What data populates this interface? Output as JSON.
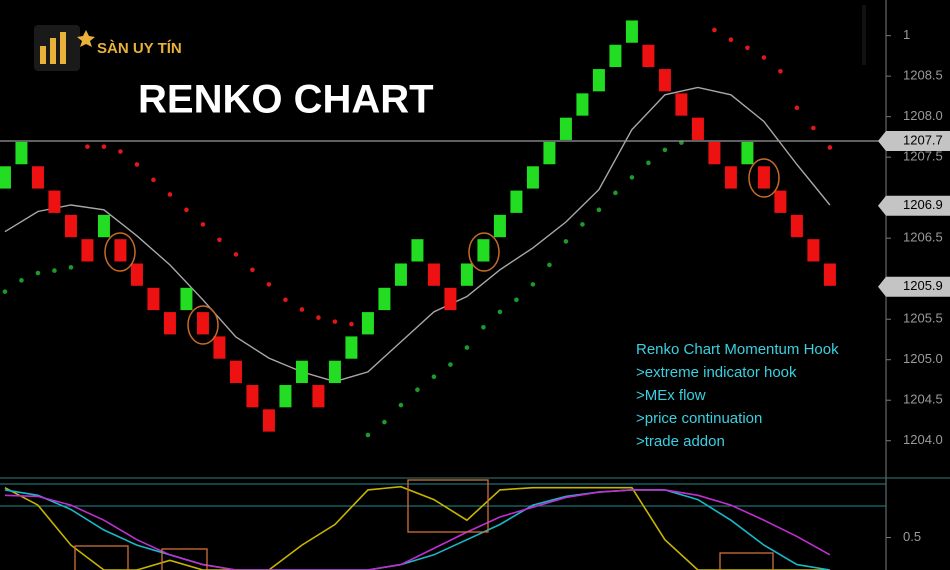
{
  "logo": {
    "text": "SÀN UY TÍN"
  },
  "title": "RENKO CHART",
  "annotation": {
    "title": "Renko Chart Momentum Hook",
    "lines": [
      ">extreme indicator hook",
      ">MEx flow",
      ">price continuation",
      ">trade addon"
    ]
  },
  "chart_data": [
    {
      "type": "renko",
      "brick_size": 0.3,
      "up_color": "#22dd22",
      "down_color": "#ee1111",
      "bricks": {
        "low": [
          1207.1,
          1207.4,
          1207.1,
          1206.8,
          1206.5,
          1206.2,
          1206.5,
          1206.2,
          1205.9,
          1205.6,
          1205.3,
          1205.6,
          1205.3,
          1205.0,
          1204.7,
          1204.4,
          1204.1,
          1204.4,
          1204.7,
          1204.4,
          1204.7,
          1205.0,
          1205.3,
          1205.6,
          1205.9,
          1206.2,
          1205.9,
          1205.6,
          1205.9,
          1206.2,
          1206.5,
          1206.8,
          1207.1,
          1207.4,
          1207.7,
          1208.0,
          1208.3,
          1208.6,
          1208.9,
          1208.6,
          1208.3,
          1208.0,
          1207.7,
          1207.4,
          1207.1,
          1207.4,
          1207.1,
          1206.8,
          1206.5,
          1206.2,
          1205.9
        ],
        "up": [
          true,
          true,
          false,
          false,
          false,
          false,
          true,
          false,
          false,
          false,
          false,
          true,
          false,
          false,
          false,
          false,
          false,
          true,
          true,
          false,
          true,
          true,
          true,
          true,
          true,
          true,
          false,
          false,
          true,
          true,
          true,
          true,
          true,
          true,
          true,
          true,
          true,
          true,
          true,
          false,
          false,
          false,
          false,
          false,
          false,
          true,
          false,
          false,
          false,
          false,
          false
        ]
      },
      "moving_average": {
        "color": "#a8a8a8",
        "x": [
          0,
          2,
          4,
          6,
          8,
          10,
          12,
          14,
          16,
          18,
          20,
          22,
          24,
          26,
          28,
          30,
          32,
          34,
          36,
          38,
          40,
          42,
          44,
          46,
          48,
          50
        ],
        "values": [
          1206.58,
          1206.83,
          1206.91,
          1206.85,
          1206.53,
          1206.17,
          1205.74,
          1205.28,
          1205.02,
          1204.85,
          1204.73,
          1204.85,
          1205.22,
          1205.59,
          1205.78,
          1206.11,
          1206.38,
          1206.7,
          1207.1,
          1207.84,
          1208.27,
          1208.36,
          1208.27,
          1207.94,
          1207.41,
          1206.91
        ]
      },
      "dots": [
        {
          "color": "#e01818",
          "values": [
            null,
            null,
            null,
            null,
            null,
            1207.63,
            1207.63,
            1207.57,
            1207.41,
            1207.22,
            1207.04,
            1206.85,
            1206.67,
            1206.48,
            1206.3,
            1206.11,
            1205.93,
            1205.74,
            1205.62,
            1205.52,
            1205.47,
            1205.44,
            null,
            null,
            null,
            null,
            null,
            null,
            null,
            null,
            null,
            null,
            null,
            null,
            null,
            null,
            null,
            null,
            null,
            null,
            null,
            null,
            null,
            1209.07,
            1208.95,
            1208.85,
            1208.73,
            1208.56,
            1208.11,
            1207.86,
            1207.62
          ]
        },
        {
          "color": "#1c9a2c",
          "values": [
            1205.84,
            1205.98,
            1206.07,
            1206.1,
            1206.14,
            null,
            null,
            null,
            null,
            null,
            null,
            null,
            null,
            null,
            null,
            null,
            null,
            null,
            null,
            null,
            null,
            null,
            1204.07,
            1204.23,
            1204.44,
            1204.63,
            1204.79,
            1204.94,
            1205.15,
            1205.4,
            1205.59,
            1205.74,
            1205.93,
            1206.17,
            1206.46,
            1206.67,
            1206.85,
            1207.06,
            1207.25,
            1207.43,
            1207.59,
            1207.68,
            null,
            null,
            null,
            null,
            null,
            null,
            null,
            null,
            null
          ]
        }
      ],
      "price_labels": [
        1207.7,
        1206.9,
        1205.9
      ],
      "xlim": [
        -0.3,
        53.4
      ],
      "ylim": [
        1203.54,
        1209.44
      ],
      "yticks": [
        {
          "value": 1209,
          "label": "1"
        },
        1208.5,
        {
          "value": 1208,
          "label": "1208.0"
        },
        1207.5,
        1206.5,
        1205.5,
        {
          "value": 1205,
          "label": "1205.0"
        },
        1204.5,
        {
          "value": 1204,
          "label": "1204.0"
        }
      ]
    },
    {
      "type": "line",
      "x": [
        0,
        2,
        4,
        6,
        8,
        10,
        12,
        14,
        16,
        18,
        20,
        22,
        24,
        26,
        28,
        30,
        32,
        34,
        36,
        38,
        40,
        42,
        44,
        46,
        48,
        50
      ],
      "series": [
        {
          "color": "#c8b400",
          "values": [
            0.96,
            0.8,
            0.43,
            0.2,
            0.2,
            0.29,
            0.2,
            0.2,
            0.2,
            0.43,
            0.62,
            0.94,
            0.97,
            0.85,
            0.66,
            0.94,
            0.96,
            0.96,
            0.96,
            0.96,
            0.48,
            0.2,
            0.2,
            0.2,
            0.2,
            0.2
          ]
        },
        {
          "color": "#19b8c8",
          "values": [
            0.94,
            0.89,
            0.76,
            0.57,
            0.43,
            0.34,
            0.25,
            0.2,
            0.2,
            0.2,
            0.2,
            0.2,
            0.25,
            0.34,
            0.48,
            0.62,
            0.8,
            0.88,
            0.92,
            0.94,
            0.94,
            0.85,
            0.66,
            0.43,
            0.25,
            0.2
          ]
        },
        {
          "color": "#c030d0",
          "values": [
            0.89,
            0.88,
            0.8,
            0.66,
            0.48,
            0.34,
            0.25,
            0.2,
            0.2,
            0.2,
            0.2,
            0.2,
            0.25,
            0.4,
            0.55,
            0.69,
            0.78,
            0.87,
            0.92,
            0.94,
            0.94,
            0.89,
            0.8,
            0.66,
            0.51,
            0.34
          ]
        }
      ],
      "xlim": [
        -0.3,
        53.4
      ],
      "ylim": [
        0.2,
        1.05
      ],
      "yticks": [
        0.5
      ]
    }
  ]
}
